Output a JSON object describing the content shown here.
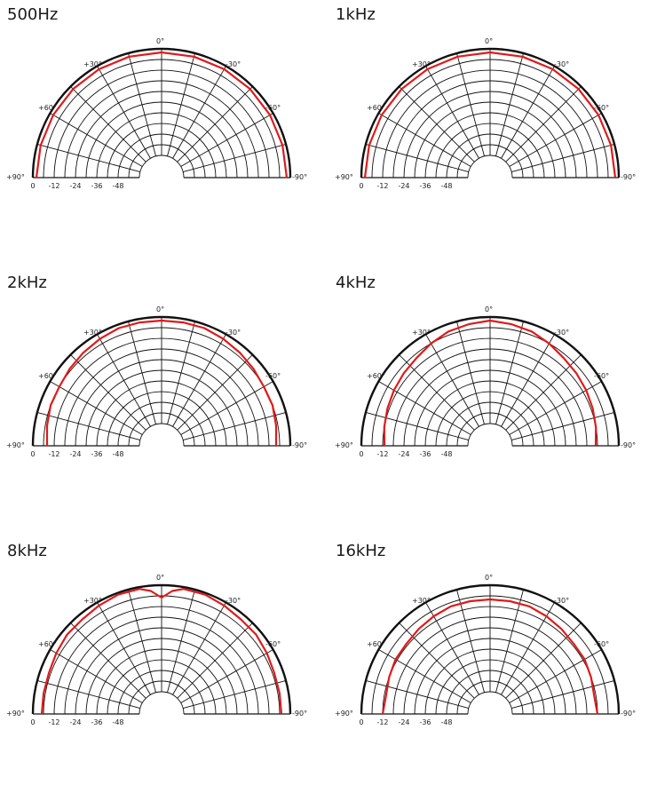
{
  "chart_data": [
    {
      "type": "polar",
      "title": "500Hz",
      "angles": [
        -90,
        -75,
        -60,
        -45,
        -30,
        -15,
        0,
        15,
        30,
        45,
        60,
        75,
        90
      ],
      "values": [
        -2,
        -2,
        -2,
        -2,
        -2,
        -2,
        -2,
        -2,
        -2,
        -2,
        -2,
        -2,
        -2
      ],
      "rlim": [
        -60,
        0
      ],
      "ring_labels": [
        "0",
        "-12",
        "-24",
        "-36",
        "-48"
      ],
      "angle_labels": {
        "0": "0°",
        "left30": "+30°",
        "right30": "-30°",
        "left60": "+60°",
        "right60": "-60°",
        "left90": "+90°",
        "right90": "-90°"
      },
      "grid": true,
      "line_color": "#e01a1a"
    },
    {
      "type": "polar",
      "title": "1kHz",
      "angles": [
        -90,
        -75,
        -60,
        -45,
        -30,
        -15,
        0,
        15,
        30,
        45,
        60,
        75,
        90
      ],
      "values": [
        -2,
        -2,
        -2,
        -2,
        -2,
        -2,
        -2,
        -2,
        -2,
        -2,
        -2,
        -2,
        -2
      ],
      "rlim": [
        -60,
        0
      ],
      "ring_labels": [
        "0",
        "-12",
        "-24",
        "-36",
        "-48"
      ],
      "angle_labels": {
        "0": "0°",
        "left30": "+30°",
        "right30": "-30°",
        "left60": "+60°",
        "right60": "-60°",
        "left90": "+90°",
        "right90": "-90°"
      },
      "grid": true,
      "line_color": "#e01a1a"
    },
    {
      "type": "polar",
      "title": "2kHz",
      "angles": [
        -90,
        -80,
        -70,
        -60,
        -50,
        -40,
        -30,
        -20,
        -10,
        0,
        10,
        20,
        30,
        40,
        50,
        60,
        70,
        80,
        90
      ],
      "values": [
        -8,
        -7,
        -6,
        -6,
        -5,
        -4,
        -3,
        -2,
        -2,
        -2,
        -2,
        -2,
        -3,
        -4,
        -5,
        -6,
        -6,
        -7,
        -8
      ],
      "rlim": [
        -60,
        0
      ],
      "ring_labels": [
        "0",
        "-12",
        "-24",
        "-36",
        "-48"
      ],
      "angle_labels": {
        "0": "0°",
        "left30": "+30°",
        "right30": "-30°",
        "left60": "+60°",
        "right60": "-60°",
        "left90": "+90°",
        "right90": "-90°"
      },
      "grid": true,
      "line_color": "#e01a1a"
    },
    {
      "type": "polar",
      "title": "4kHz",
      "angles": [
        -90,
        -80,
        -70,
        -60,
        -50,
        -40,
        -30,
        -20,
        -10,
        0,
        10,
        20,
        30,
        40,
        50,
        60,
        70,
        80,
        90
      ],
      "values": [
        -13,
        -12,
        -11,
        -10,
        -9,
        -8,
        -6,
        -4,
        -3,
        -2,
        -3,
        -4,
        -6,
        -8,
        -9,
        -10,
        -11,
        -12,
        -13
      ],
      "rlim": [
        -60,
        0
      ],
      "ring_labels": [
        "0",
        "-12",
        "-24",
        "-36",
        "-48"
      ],
      "angle_labels": {
        "0": "0°",
        "left30": "+30°",
        "right30": "-30°",
        "left60": "+60°",
        "right60": "-60°",
        "left90": "+90°",
        "right90": "-90°"
      },
      "grid": true,
      "line_color": "#e01a1a"
    },
    {
      "type": "polar",
      "title": "8kHz",
      "angles": [
        -90,
        -80,
        -70,
        -60,
        -50,
        -40,
        -30,
        -20,
        -10,
        -5,
        0,
        5,
        10,
        20,
        30,
        40,
        50,
        60,
        70,
        80,
        90
      ],
      "values": [
        -5,
        -5,
        -5,
        -4,
        -3,
        -3,
        -2,
        -1,
        -1,
        -3,
        -7,
        -3,
        -1,
        -1,
        -2,
        -3,
        -3,
        -4,
        -5,
        -5,
        -5
      ],
      "rlim": [
        -60,
        0
      ],
      "ring_labels": [
        "0",
        "-12",
        "-24",
        "-36",
        "-48"
      ],
      "angle_labels": {
        "0": "0°",
        "left30": "+30°",
        "right30": "-30°",
        "left60": "+60°",
        "right60": "-60°",
        "left90": "+90°",
        "right90": "-90°"
      },
      "grid": true,
      "line_color": "#e01a1a"
    },
    {
      "type": "polar",
      "title": "16kHz",
      "angles": [
        -90,
        -80,
        -70,
        -60,
        -50,
        -40,
        -30,
        -20,
        -10,
        0,
        10,
        20,
        30,
        40,
        50,
        60,
        70,
        80,
        90
      ],
      "values": [
        -12,
        -13,
        -12,
        -11,
        -11,
        -10,
        -9,
        -8,
        -8,
        -8,
        -8,
        -8,
        -9,
        -10,
        -11,
        -11,
        -12,
        -13,
        -12
      ],
      "rlim": [
        -60,
        0
      ],
      "ring_labels": [
        "0",
        "-12",
        "-24",
        "-36",
        "-48"
      ],
      "angle_labels": {
        "0": "0°",
        "left30": "+30°",
        "right30": "-30°",
        "left60": "+60°",
        "right60": "-60°",
        "left90": "+90°",
        "right90": "-90°"
      },
      "grid": true,
      "line_color": "#e01a1a"
    }
  ]
}
